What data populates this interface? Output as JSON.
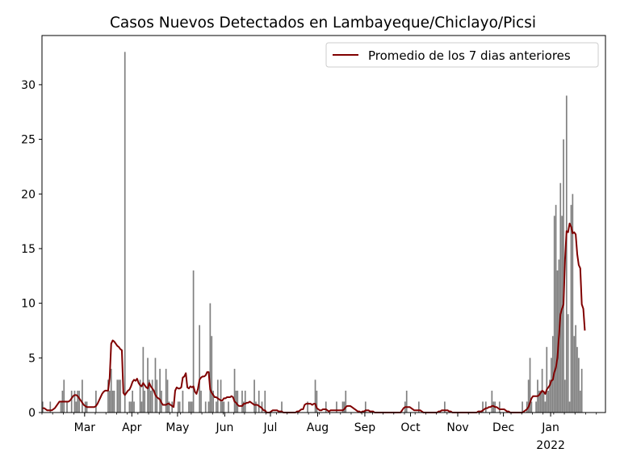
{
  "chart_data": {
    "type": "bar",
    "title": "Casos Nuevos Detectados en Lambayeque/Chiclayo/Picsi",
    "xlabel": "",
    "ylabel": "",
    "x_start_date": "2021-02-01",
    "x_end_date": "2022-02-06",
    "xlim": [
      "2021-02-01",
      "2022-02-06"
    ],
    "ylim": [
      0,
      34.5
    ],
    "y_ticks": [
      0,
      5,
      10,
      15,
      20,
      25,
      30
    ],
    "x_ticks": [
      {
        "date": "2021-03-01",
        "label": "Mar"
      },
      {
        "date": "2021-04-01",
        "label": "Apr"
      },
      {
        "date": "2021-05-01",
        "label": "May"
      },
      {
        "date": "2021-06-01",
        "label": "Jun"
      },
      {
        "date": "2021-07-01",
        "label": "Jul"
      },
      {
        "date": "2021-08-01",
        "label": "Aug"
      },
      {
        "date": "2021-09-01",
        "label": "Sep"
      },
      {
        "date": "2021-10-01",
        "label": "Oct"
      },
      {
        "date": "2021-11-01",
        "label": "Nov"
      },
      {
        "date": "2021-12-01",
        "label": "Dec"
      },
      {
        "date": "2022-01-01",
        "label": "Jan",
        "sublabel": "2022"
      }
    ],
    "grid": false,
    "legend_position": "top-right",
    "bar_color": "#808080",
    "line_color": "#800000",
    "series": [
      {
        "kind": "bar",
        "values": [
          1,
          0,
          0,
          0,
          0,
          1,
          0,
          0,
          0,
          0,
          0,
          0,
          1,
          2,
          3,
          0,
          1,
          0,
          0,
          2,
          0,
          2,
          1,
          2,
          2,
          0,
          3,
          0,
          1,
          1,
          0,
          0,
          0,
          0,
          0,
          2,
          0,
          0,
          0,
          0,
          0,
          0,
          0,
          3,
          2,
          4,
          2,
          2,
          0,
          3,
          3,
          3,
          0,
          0,
          33,
          0,
          0,
          1,
          1,
          2,
          1,
          0,
          0,
          0,
          3,
          1,
          6,
          2,
          0,
          5,
          3,
          2,
          3,
          0,
          5,
          3,
          0,
          4,
          2,
          0,
          0,
          4,
          3,
          1,
          0,
          1,
          0,
          0,
          0,
          1,
          1,
          0,
          2,
          0,
          0,
          0,
          1,
          1,
          1,
          13,
          0,
          0,
          0,
          8,
          2,
          0,
          0,
          1,
          0,
          1,
          10,
          7,
          2,
          0,
          1,
          3,
          0,
          3,
          1,
          1,
          0,
          0,
          1,
          0,
          0,
          0,
          4,
          2,
          2,
          0,
          0,
          2,
          1,
          2,
          0,
          0,
          0,
          0,
          0,
          3,
          1,
          0,
          2,
          0,
          1,
          0,
          2,
          0,
          0,
          0,
          0,
          0,
          0,
          0,
          0,
          0,
          0,
          1,
          0,
          0,
          0,
          0,
          0,
          0,
          0,
          0,
          0,
          0,
          0,
          0,
          0,
          0,
          0,
          0,
          1,
          0,
          0,
          0,
          0,
          3,
          2,
          0,
          0,
          0,
          0,
          0,
          1,
          0,
          0,
          0,
          0,
          0,
          0,
          1,
          0,
          0,
          0,
          1,
          1,
          2,
          0,
          0,
          0,
          0,
          0,
          0,
          0,
          0,
          0,
          0,
          0,
          0,
          1,
          0,
          0,
          0,
          0,
          0,
          0,
          0,
          0,
          0,
          0,
          0,
          0,
          0,
          0,
          0,
          0,
          0,
          0,
          0,
          0,
          0,
          0,
          0,
          0,
          0,
          1,
          2,
          0,
          0,
          0,
          0,
          0,
          0,
          0,
          1,
          0,
          0,
          0,
          0,
          0,
          0,
          0,
          0,
          0,
          0,
          0,
          0,
          0,
          0,
          0,
          0,
          1,
          0,
          0,
          0,
          0,
          0,
          0,
          0,
          0,
          0,
          0,
          0,
          0,
          0,
          0,
          0,
          0,
          0,
          0,
          0,
          0,
          0,
          0,
          0,
          0,
          1,
          0,
          1,
          0,
          0,
          0,
          2,
          1,
          1,
          0,
          0,
          1,
          0,
          0,
          0,
          0,
          0,
          0,
          0,
          0,
          0,
          0,
          0,
          0,
          0,
          0,
          1,
          0,
          0,
          1,
          3,
          5,
          1,
          0,
          0,
          1,
          3,
          2,
          2,
          4,
          2,
          1,
          6,
          2,
          3,
          5,
          7,
          18,
          19,
          13,
          14,
          21,
          18,
          25,
          3,
          29,
          9,
          1,
          19,
          20,
          7,
          8,
          6,
          5,
          2,
          4
        ]
      },
      {
        "kind": "line",
        "name": "Promedio de los 7 dias anteriores",
        "values": [
          0.4,
          0.4,
          0.3,
          0.2,
          0.2,
          0.2,
          0.2,
          0.3,
          0.4,
          0.6,
          0.8,
          1.0,
          1.0,
          1.0,
          1.0,
          1.0,
          1.0,
          1.0,
          1.1,
          1.3,
          1.5,
          1.6,
          1.6,
          1.5,
          1.3,
          1.1,
          0.9,
          0.7,
          0.6,
          0.5,
          0.5,
          0.5,
          0.5,
          0.5,
          0.5,
          0.6,
          0.8,
          1.1,
          1.4,
          1.7,
          1.9,
          2.0,
          2.0,
          2.0,
          3.2,
          6.3,
          6.6,
          6.5,
          6.3,
          6.1,
          6.0,
          5.8,
          5.7,
          1.8,
          1.6,
          1.8,
          2.0,
          2.1,
          2.4,
          2.8,
          3.0,
          2.9,
          3.1,
          2.7,
          2.5,
          2.4,
          2.7,
          2.5,
          2.3,
          2.2,
          2.7,
          2.4,
          2.2,
          2.0,
          1.6,
          1.4,
          1.3,
          1.2,
          0.9,
          0.7,
          0.7,
          0.7,
          0.8,
          0.8,
          0.7,
          0.6,
          0.5,
          2.0,
          2.3,
          2.2,
          2.2,
          2.3,
          3.2,
          3.3,
          3.6,
          2.3,
          2.2,
          2.4,
          2.3,
          2.4,
          1.9,
          1.7,
          2.2,
          3.0,
          3.2,
          3.3,
          3.3,
          3.4,
          3.7,
          3.7,
          2.1,
          1.8,
          1.6,
          1.4,
          1.4,
          1.3,
          1.2,
          1.1,
          1.1,
          1.3,
          1.3,
          1.4,
          1.4,
          1.4,
          1.5,
          1.4,
          1.0,
          0.9,
          0.7,
          0.6,
          0.6,
          0.6,
          0.8,
          0.8,
          0.9,
          0.9,
          1.0,
          0.9,
          0.8,
          0.7,
          0.7,
          0.7,
          0.6,
          0.5,
          0.4,
          0.2,
          0.2,
          0.0,
          0.0,
          0.0,
          0.1,
          0.2,
          0.2,
          0.2,
          0.2,
          0.1,
          0.1,
          0.1,
          0.0,
          0.0,
          0.0,
          0.0,
          0.0,
          0.0,
          0.0,
          0.0,
          0.0,
          0.1,
          0.1,
          0.2,
          0.3,
          0.3,
          0.7,
          0.8,
          0.8,
          0.8,
          0.8,
          0.7,
          0.8,
          0.8,
          0.4,
          0.3,
          0.2,
          0.2,
          0.3,
          0.3,
          0.3,
          0.2,
          0.1,
          0.2,
          0.2,
          0.2,
          0.2,
          0.2,
          0.2,
          0.2,
          0.2,
          0.2,
          0.3,
          0.5,
          0.6,
          0.6,
          0.6,
          0.5,
          0.4,
          0.3,
          0.2,
          0.1,
          0.1,
          0.0,
          0.1,
          0.1,
          0.2,
          0.2,
          0.2,
          0.1,
          0.1,
          0.1,
          0.0,
          0.0,
          0.0,
          0.0,
          0.0,
          0.0,
          0.0,
          0.0,
          0.0,
          0.0,
          0.0,
          0.0,
          0.0,
          0.0,
          0.0,
          0.0,
          0.0,
          0.0,
          0.2,
          0.4,
          0.5,
          0.5,
          0.5,
          0.5,
          0.4,
          0.3,
          0.2,
          0.2,
          0.2,
          0.2,
          0.2,
          0.1,
          0.0,
          0.0,
          0.0,
          0.0,
          0.0,
          0.0,
          0.0,
          0.0,
          0.0,
          0.0,
          0.1,
          0.1,
          0.2,
          0.2,
          0.2,
          0.2,
          0.2,
          0.1,
          0.1,
          0.0,
          0.0,
          0.0,
          0.0,
          0.0,
          0.0,
          0.0,
          0.0,
          0.0,
          0.0,
          0.0,
          0.0,
          0.0,
          0.0,
          0.0,
          0.0,
          0.0,
          0.1,
          0.1,
          0.1,
          0.2,
          0.3,
          0.4,
          0.4,
          0.5,
          0.5,
          0.6,
          0.6,
          0.5,
          0.5,
          0.4,
          0.3,
          0.3,
          0.3,
          0.3,
          0.2,
          0.1,
          0.1,
          0.0,
          0.0,
          0.0,
          0.0,
          0.0,
          0.0,
          0.0,
          0.0,
          0.0,
          0.1,
          0.2,
          0.3,
          0.5,
          0.9,
          1.3,
          1.5,
          1.5,
          1.5,
          1.5,
          1.6,
          1.8,
          2.0,
          1.9,
          1.7,
          2.1,
          2.3,
          2.5,
          2.9,
          3.0,
          3.7,
          4.1,
          5.0,
          7.0,
          9.0,
          9.5,
          9.9,
          14.0,
          16.6,
          16.5,
          17.3,
          17.0,
          16.4,
          16.5,
          16.3,
          14.5,
          13.5,
          13.2,
          9.9,
          9.5,
          7.5
        ]
      }
    ]
  }
}
